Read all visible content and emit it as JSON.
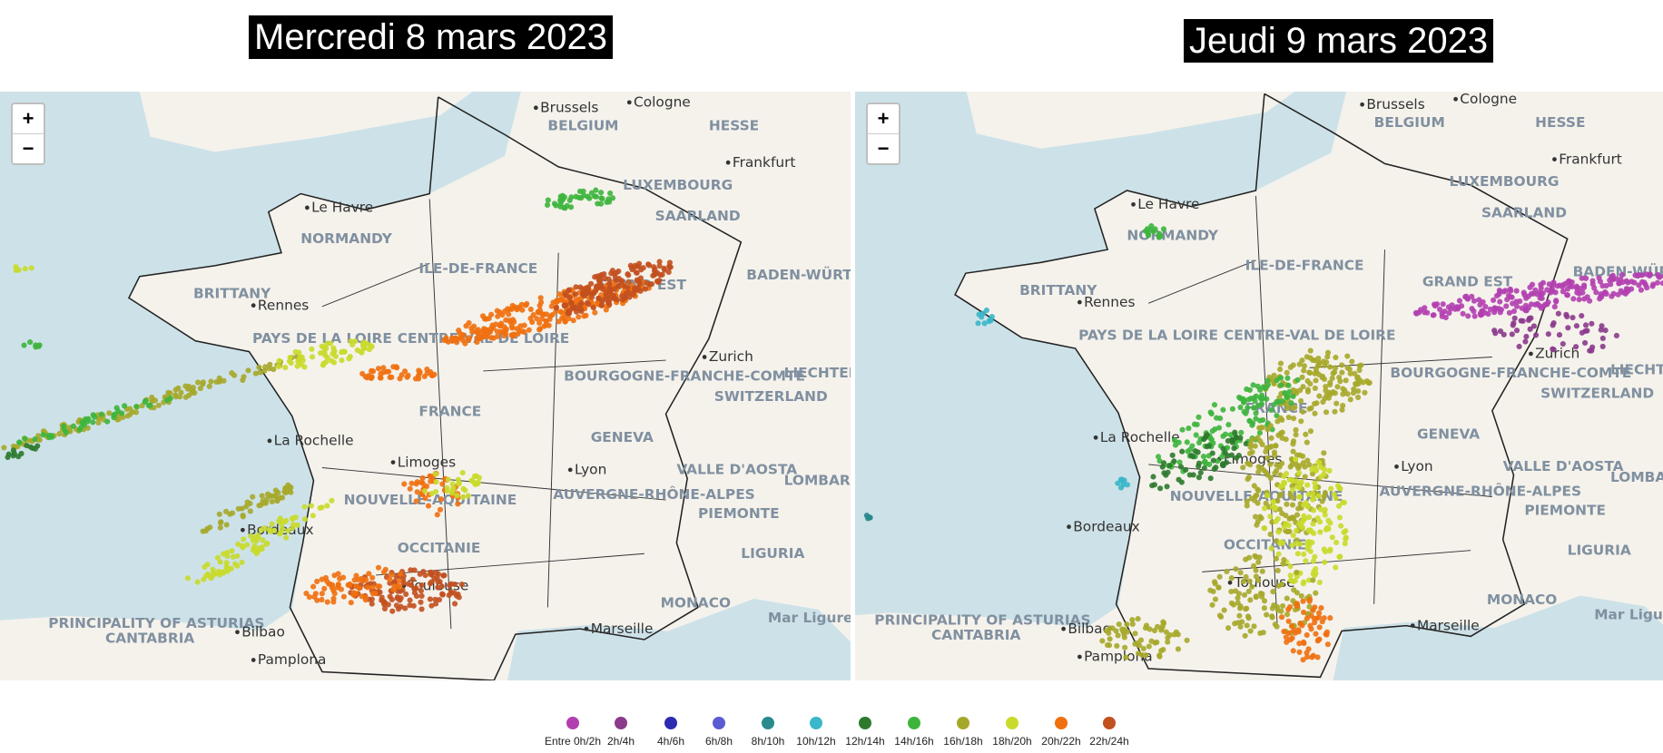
{
  "titles": [
    "Mercredi 8 mars 2023",
    "Jeudi 9 mars 2023"
  ],
  "zoom_in": "+",
  "zoom_out": "−",
  "map_labels": [
    "Brussels",
    "Cologne",
    "BELGIUM",
    "HESSE",
    "Frankfurt",
    "LUXEMBOURG",
    "SAARLAND",
    "Le Havre",
    "NORMANDY",
    "ILE-DE-FRANCE",
    "BRITTANY",
    "Rennes",
    "GRAND EST",
    "BADEN-WÜRTTEMBERG",
    "PAYS DE LA LOIRE",
    "CENTRE-VAL DE LOIRE",
    "BOURGOGNE-FRANCHE-COMTÉ",
    "Zurich",
    "LIECHTENSTEIN",
    "FRANCE",
    "SWITZERLAND",
    "La Rochelle",
    "GENEVA",
    "Limoges",
    "NOUVELLE-AQUITAINE",
    "Lyon",
    "AUVERGNE-RHÔNE-ALPES",
    "VALLE D'AOSTA",
    "LOMBARDY",
    "PIEMONTE",
    "Bordeaux",
    "LIGURIA",
    "OCCITANIE",
    "Toulouse",
    "MONACO",
    "PRINCIPALITY OF ASTURIAS",
    "CANTABRIA",
    "Bilbao",
    "Marseille",
    "Pamplona",
    "Mar Ligure"
  ],
  "legend": [
    {
      "label": "Entre 0h/2h",
      "color": "#b23fb0"
    },
    {
      "label": "2h/4h",
      "color": "#8b3a8c"
    },
    {
      "label": "4h/6h",
      "color": "#2c2cb2"
    },
    {
      "label": "6h/8h",
      "color": "#5b5bd2"
    },
    {
      "label": "8h/10h",
      "color": "#2a8a8c"
    },
    {
      "label": "10h/12h",
      "color": "#3ab7c8"
    },
    {
      "label": "12h/14h",
      "color": "#2d7a2d"
    },
    {
      "label": "14h/16h",
      "color": "#3db53d"
    },
    {
      "label": "16h/18h",
      "color": "#a6a82a"
    },
    {
      "label": "18h/20h",
      "color": "#c9da2b"
    },
    {
      "label": "20h/22h",
      "color": "#f07010"
    },
    {
      "label": "22h/24h",
      "color": "#c2501f"
    }
  ]
}
